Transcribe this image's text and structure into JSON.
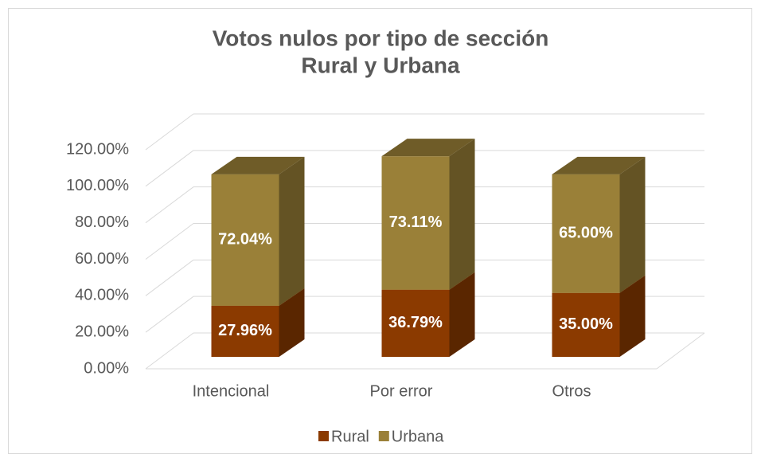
{
  "chart_data": {
    "type": "bar3d_stacked",
    "title": "Votos nulos por tipo de sección",
    "subtitle": "Rural y Urbana",
    "categories": [
      "Intencional",
      "Por error",
      "Otros"
    ],
    "series": [
      {
        "name": "Rural",
        "color": "#8b3a00",
        "values": [
          27.96,
          36.79,
          35.0
        ],
        "value_labels": [
          "27.96%",
          "36.79%",
          "35.00%"
        ]
      },
      {
        "name": "Urbana",
        "color": "#9a8038",
        "values": [
          72.04,
          73.11,
          65.0
        ],
        "value_labels": [
          "72.04%",
          "73.11%",
          "65.00%"
        ]
      }
    ],
    "ylim": [
      0,
      120
    ],
    "yticks": [
      {
        "value": 0,
        "label": "0.00%"
      },
      {
        "value": 20,
        "label": "20.00%"
      },
      {
        "value": 40,
        "label": "40.00%"
      },
      {
        "value": 60,
        "label": "60.00%"
      },
      {
        "value": 80,
        "label": "80.00%"
      },
      {
        "value": 100,
        "label": "100.00%"
      },
      {
        "value": 120,
        "label": "120.00%"
      }
    ],
    "grid": true,
    "legend": "bottom"
  }
}
